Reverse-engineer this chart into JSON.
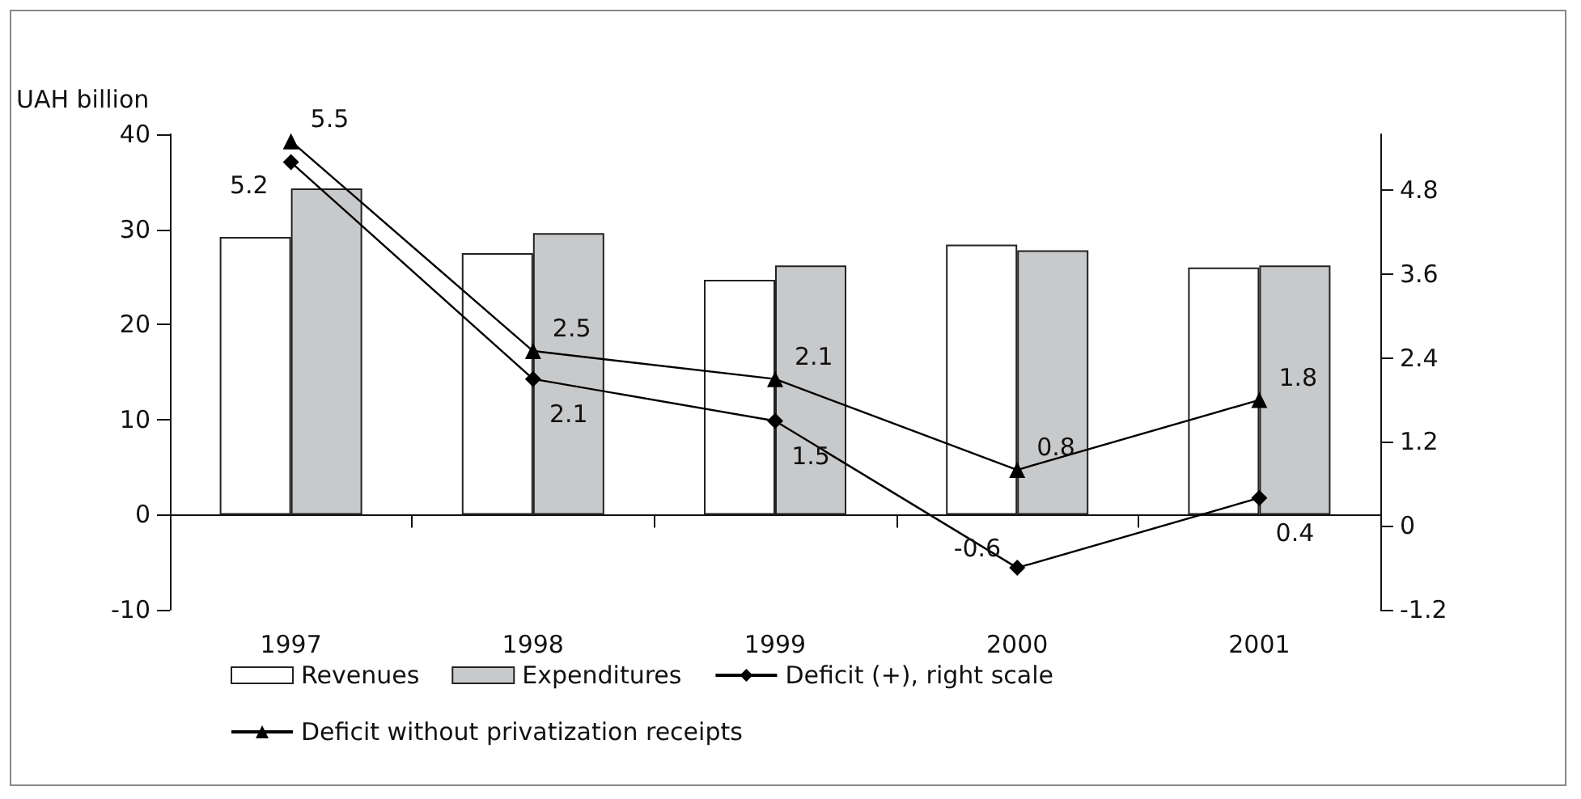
{
  "chart_data": {
    "type": "bar",
    "ylabel": "UAH billion",
    "categories": [
      "1997",
      "1998",
      "1999",
      "2000",
      "2001"
    ],
    "series": [
      {
        "name": "Revenues",
        "color": "#ffffff",
        "values": [
          29.2,
          27.5,
          24.7,
          28.4,
          26.0
        ]
      },
      {
        "name": "Expenditures",
        "color": "#c8c9cb",
        "values": [
          34.3,
          29.6,
          26.2,
          27.8,
          26.2
        ]
      },
      {
        "name": "Deficit (+), right scale",
        "type": "line",
        "axis": "y2",
        "color": "#000000",
        "marker": "diamond",
        "values": [
          5.2,
          2.1,
          1.5,
          -0.6,
          0.4
        ],
        "value_labels": [
          "5.2",
          "2.1",
          "1.5",
          "-0.6",
          "0.4"
        ]
      },
      {
        "name": "Deficit without privatization receipts",
        "type": "line",
        "axis": "y2",
        "color": "#000000",
        "marker": "triangle",
        "values": [
          5.5,
          2.5,
          2.1,
          0.8,
          1.8
        ],
        "value_labels": [
          "5.5",
          "2.5",
          "2.1",
          "0.8",
          "1.8"
        ]
      }
    ],
    "ylim": [
      -10,
      40
    ],
    "yticks": [
      -10,
      0,
      10,
      20,
      30,
      40
    ],
    "y2lim": [
      -1.2,
      5.6
    ],
    "y2ticks": [
      -1.2,
      0,
      1.2,
      2.4,
      3.6,
      4.8
    ],
    "legend": "bottom"
  }
}
